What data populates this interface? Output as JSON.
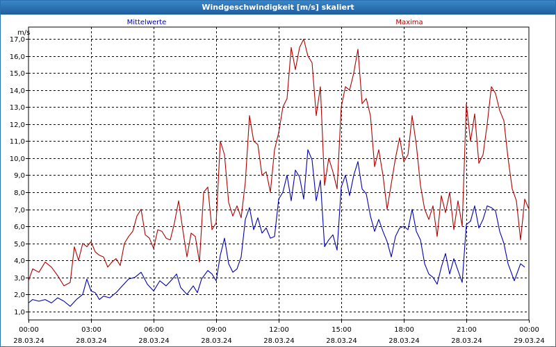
{
  "window": {
    "title": "Windgeschwindigkeit [m/s] skaliert"
  },
  "chart_data": {
    "type": "line",
    "ylabel": "m/s",
    "ylim": [
      0.5,
      17.7
    ],
    "yticks": [
      "1,0",
      "2,0",
      "3,0",
      "4,0",
      "5,0",
      "6,0",
      "7,0",
      "8,0",
      "9,0",
      "10,0",
      "11,0",
      "12,0",
      "13,0",
      "14,0",
      "15,0",
      "16,0",
      "17,0"
    ],
    "xlim": [
      0,
      24
    ],
    "xticks": [
      {
        "time": "00:00",
        "date": "28.03.24"
      },
      {
        "time": "03:00",
        "date": "28.03.24"
      },
      {
        "time": "06:00",
        "date": "28.03.24"
      },
      {
        "time": "09:00",
        "date": "28.03.24"
      },
      {
        "time": "12:00",
        "date": "28.03.24"
      },
      {
        "time": "15:00",
        "date": "28.03.24"
      },
      {
        "time": "18:00",
        "date": "28.03.24"
      },
      {
        "time": "21:00",
        "date": "28.03.24"
      },
      {
        "time": "00:00",
        "date": "29.03.24"
      }
    ],
    "grid": true,
    "series": [
      {
        "name": "Mittelwerte",
        "color": "#0000b0",
        "points": [
          [
            0.0,
            1.5
          ],
          [
            0.2,
            1.7
          ],
          [
            0.5,
            1.6
          ],
          [
            0.8,
            1.7
          ],
          [
            1.1,
            1.5
          ],
          [
            1.4,
            1.8
          ],
          [
            1.7,
            1.6
          ],
          [
            2.0,
            1.3
          ],
          [
            2.3,
            1.7
          ],
          [
            2.6,
            2.0
          ],
          [
            2.8,
            2.9
          ],
          [
            3.0,
            2.2
          ],
          [
            3.2,
            2.1
          ],
          [
            3.4,
            1.7
          ],
          [
            3.6,
            1.9
          ],
          [
            3.9,
            1.8
          ],
          [
            4.2,
            2.1
          ],
          [
            4.5,
            2.5
          ],
          [
            4.8,
            2.9
          ],
          [
            5.1,
            3.0
          ],
          [
            5.4,
            3.3
          ],
          [
            5.7,
            2.6
          ],
          [
            6.0,
            2.2
          ],
          [
            6.3,
            2.8
          ],
          [
            6.6,
            2.5
          ],
          [
            6.9,
            2.9
          ],
          [
            7.1,
            3.2
          ],
          [
            7.3,
            2.4
          ],
          [
            7.6,
            2.0
          ],
          [
            7.9,
            2.5
          ],
          [
            8.1,
            2.1
          ],
          [
            8.3,
            2.9
          ],
          [
            8.6,
            3.4
          ],
          [
            8.8,
            3.2
          ],
          [
            9.0,
            2.8
          ],
          [
            9.2,
            4.3
          ],
          [
            9.4,
            5.3
          ],
          [
            9.6,
            3.8
          ],
          [
            9.8,
            3.3
          ],
          [
            10.0,
            3.5
          ],
          [
            10.2,
            4.2
          ],
          [
            10.4,
            6.4
          ],
          [
            10.6,
            7.1
          ],
          [
            10.8,
            5.8
          ],
          [
            11.0,
            6.5
          ],
          [
            11.2,
            5.6
          ],
          [
            11.4,
            5.9
          ],
          [
            11.6,
            5.3
          ],
          [
            11.8,
            5.4
          ],
          [
            12.0,
            7.6
          ],
          [
            12.2,
            8.0
          ],
          [
            12.4,
            9.0
          ],
          [
            12.6,
            7.5
          ],
          [
            12.8,
            9.3
          ],
          [
            13.0,
            8.9
          ],
          [
            13.2,
            7.6
          ],
          [
            13.4,
            10.5
          ],
          [
            13.6,
            9.9
          ],
          [
            13.8,
            7.5
          ],
          [
            14.0,
            8.7
          ],
          [
            14.2,
            4.8
          ],
          [
            14.4,
            5.2
          ],
          [
            14.6,
            5.5
          ],
          [
            14.8,
            4.6
          ],
          [
            15.0,
            8.3
          ],
          [
            15.2,
            9.0
          ],
          [
            15.4,
            7.8
          ],
          [
            15.6,
            9.0
          ],
          [
            15.8,
            9.8
          ],
          [
            16.0,
            8.2
          ],
          [
            16.2,
            7.9
          ],
          [
            16.4,
            6.6
          ],
          [
            16.6,
            5.7
          ],
          [
            16.8,
            6.4
          ],
          [
            17.0,
            5.7
          ],
          [
            17.2,
            5.1
          ],
          [
            17.4,
            4.2
          ],
          [
            17.6,
            5.4
          ],
          [
            17.8,
            5.9
          ],
          [
            18.0,
            6.0
          ],
          [
            18.2,
            5.8
          ],
          [
            18.4,
            7.0
          ],
          [
            18.6,
            5.7
          ],
          [
            18.8,
            5.2
          ],
          [
            19.0,
            3.8
          ],
          [
            19.2,
            3.2
          ],
          [
            19.4,
            3.0
          ],
          [
            19.6,
            2.6
          ],
          [
            19.8,
            3.6
          ],
          [
            20.0,
            4.4
          ],
          [
            20.2,
            3.2
          ],
          [
            20.4,
            4.1
          ],
          [
            20.6,
            3.4
          ],
          [
            20.8,
            2.7
          ],
          [
            21.0,
            6.1
          ],
          [
            21.2,
            6.3
          ],
          [
            21.4,
            7.2
          ],
          [
            21.6,
            5.9
          ],
          [
            21.8,
            6.4
          ],
          [
            22.0,
            7.2
          ],
          [
            22.2,
            7.1
          ],
          [
            22.4,
            6.9
          ],
          [
            22.6,
            5.7
          ],
          [
            22.8,
            5.0
          ],
          [
            23.0,
            3.8
          ],
          [
            23.3,
            2.8
          ],
          [
            23.6,
            3.8
          ],
          [
            23.8,
            3.6
          ]
        ]
      },
      {
        "name": "Maxima",
        "color": "#b00000",
        "points": [
          [
            0.0,
            2.8
          ],
          [
            0.2,
            3.5
          ],
          [
            0.5,
            3.3
          ],
          [
            0.8,
            3.9
          ],
          [
            1.1,
            3.6
          ],
          [
            1.4,
            3.1
          ],
          [
            1.7,
            2.5
          ],
          [
            2.0,
            2.7
          ],
          [
            2.2,
            4.8
          ],
          [
            2.4,
            4.0
          ],
          [
            2.6,
            5.0
          ],
          [
            2.8,
            4.8
          ],
          [
            3.0,
            5.1
          ],
          [
            3.2,
            4.5
          ],
          [
            3.4,
            4.3
          ],
          [
            3.6,
            4.2
          ],
          [
            3.8,
            3.6
          ],
          [
            4.0,
            3.9
          ],
          [
            4.2,
            4.1
          ],
          [
            4.4,
            3.7
          ],
          [
            4.6,
            5.0
          ],
          [
            4.8,
            5.4
          ],
          [
            5.0,
            5.7
          ],
          [
            5.2,
            6.6
          ],
          [
            5.4,
            7.0
          ],
          [
            5.6,
            5.5
          ],
          [
            5.8,
            5.3
          ],
          [
            6.0,
            4.7
          ],
          [
            6.2,
            5.8
          ],
          [
            6.4,
            5.7
          ],
          [
            6.6,
            5.3
          ],
          [
            6.8,
            5.2
          ],
          [
            7.0,
            6.2
          ],
          [
            7.2,
            7.5
          ],
          [
            7.4,
            5.8
          ],
          [
            7.6,
            4.2
          ],
          [
            7.8,
            5.6
          ],
          [
            8.0,
            5.4
          ],
          [
            8.2,
            3.9
          ],
          [
            8.4,
            8.0
          ],
          [
            8.6,
            8.3
          ],
          [
            8.8,
            5.8
          ],
          [
            9.0,
            6.2
          ],
          [
            9.2,
            11.0
          ],
          [
            9.4,
            10.2
          ],
          [
            9.6,
            7.4
          ],
          [
            9.8,
            6.6
          ],
          [
            10.0,
            7.2
          ],
          [
            10.2,
            6.5
          ],
          [
            10.4,
            8.6
          ],
          [
            10.6,
            12.5
          ],
          [
            10.8,
            11.0
          ],
          [
            11.0,
            10.8
          ],
          [
            11.2,
            9.0
          ],
          [
            11.4,
            9.2
          ],
          [
            11.6,
            8.0
          ],
          [
            11.8,
            10.5
          ],
          [
            12.0,
            11.5
          ],
          [
            12.2,
            13.0
          ],
          [
            12.4,
            13.5
          ],
          [
            12.6,
            16.5
          ],
          [
            12.8,
            15.2
          ],
          [
            13.0,
            16.5
          ],
          [
            13.2,
            17.0
          ],
          [
            13.4,
            16.0
          ],
          [
            13.6,
            15.6
          ],
          [
            13.8,
            12.5
          ],
          [
            14.0,
            14.2
          ],
          [
            14.2,
            8.4
          ],
          [
            14.4,
            10.0
          ],
          [
            14.6,
            9.2
          ],
          [
            14.8,
            8.2
          ],
          [
            15.0,
            13.0
          ],
          [
            15.2,
            14.2
          ],
          [
            15.4,
            14.0
          ],
          [
            15.6,
            15.0
          ],
          [
            15.8,
            16.4
          ],
          [
            16.0,
            13.2
          ],
          [
            16.2,
            13.5
          ],
          [
            16.4,
            12.5
          ],
          [
            16.6,
            9.5
          ],
          [
            16.8,
            10.5
          ],
          [
            17.0,
            9.0
          ],
          [
            17.2,
            7.0
          ],
          [
            17.4,
            8.5
          ],
          [
            17.6,
            10.0
          ],
          [
            17.8,
            11.2
          ],
          [
            18.0,
            9.8
          ],
          [
            18.2,
            10.2
          ],
          [
            18.4,
            12.5
          ],
          [
            18.6,
            10.8
          ],
          [
            18.8,
            8.4
          ],
          [
            19.0,
            7.0
          ],
          [
            19.2,
            6.4
          ],
          [
            19.4,
            7.2
          ],
          [
            19.6,
            5.4
          ],
          [
            19.8,
            7.8
          ],
          [
            20.0,
            6.8
          ],
          [
            20.2,
            8.0
          ],
          [
            20.4,
            5.8
          ],
          [
            20.6,
            7.5
          ],
          [
            20.8,
            6.0
          ],
          [
            21.0,
            13.2
          ],
          [
            21.2,
            11.0
          ],
          [
            21.4,
            12.6
          ],
          [
            21.6,
            9.7
          ],
          [
            21.8,
            10.2
          ],
          [
            22.0,
            12.0
          ],
          [
            22.2,
            14.2
          ],
          [
            22.4,
            13.8
          ],
          [
            22.6,
            12.8
          ],
          [
            22.8,
            12.2
          ],
          [
            23.0,
            10.0
          ],
          [
            23.2,
            8.2
          ],
          [
            23.4,
            7.5
          ],
          [
            23.6,
            5.2
          ],
          [
            23.8,
            7.6
          ],
          [
            24.0,
            7.0
          ]
        ]
      }
    ]
  }
}
